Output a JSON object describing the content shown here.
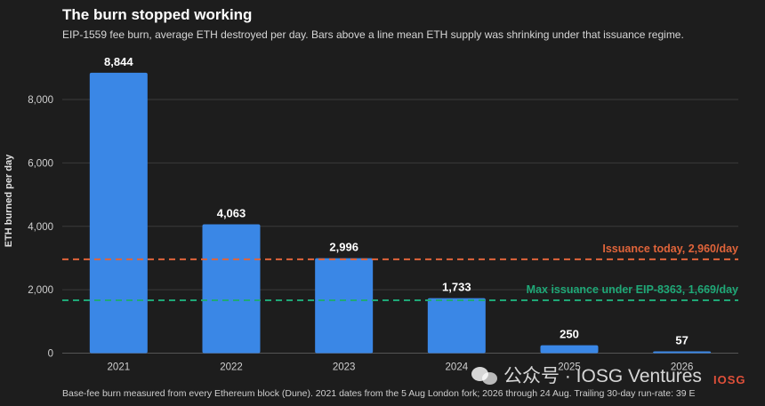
{
  "header": {
    "title": "The burn stopped working",
    "subtitle": "EIP-1559 fee burn, average ETH destroyed per day. Bars above a line mean ETH supply was shrinking under that issuance regime."
  },
  "footnote": "Base-fee burn measured from every Ethereum block (Dune). 2021 dates from the 5 Aug London fork; 2026 through 24 Aug. Trailing 30-day run-rate: 39 E",
  "watermark": {
    "text": "公众号 · IOSG Ventures",
    "brand": "IOSG"
  },
  "colors": {
    "background": "#1d1d1d",
    "bar": "#3a87e6",
    "issuance_today": "#e0643a",
    "max_issuance": "#1fa877",
    "grid": "#3a3a3a",
    "axis_text": "#d0d0d0"
  },
  "chart_data": {
    "type": "bar",
    "title": "The burn stopped working",
    "subtitle": "EIP-1559 fee burn, average ETH destroyed per day. Bars above a line mean ETH supply was shrinking under that issuance regime.",
    "xlabel": "",
    "ylabel": "ETH burned per day",
    "categories": [
      "2021",
      "2022",
      "2023",
      "2024",
      "2025",
      "2026"
    ],
    "values": [
      8844,
      4063,
      2996,
      1733,
      250,
      57
    ],
    "value_labels": [
      "8,844",
      "4,063",
      "2,996",
      "1,733",
      "250",
      "57"
    ],
    "ylim": [
      0,
      9500
    ],
    "yticks": [
      0,
      2000,
      4000,
      6000,
      8000
    ],
    "ytick_labels": [
      "0",
      "2,000",
      "4,000",
      "6,000",
      "8,000"
    ],
    "grid": true,
    "reference_lines": [
      {
        "value": 2960,
        "label": "Issuance today, 2,960/day",
        "color": "#e0643a",
        "style": "dashed"
      },
      {
        "value": 1669,
        "label": "Max issuance under EIP-8363, 1,669/day",
        "color": "#1fa877",
        "style": "dashed"
      }
    ]
  }
}
